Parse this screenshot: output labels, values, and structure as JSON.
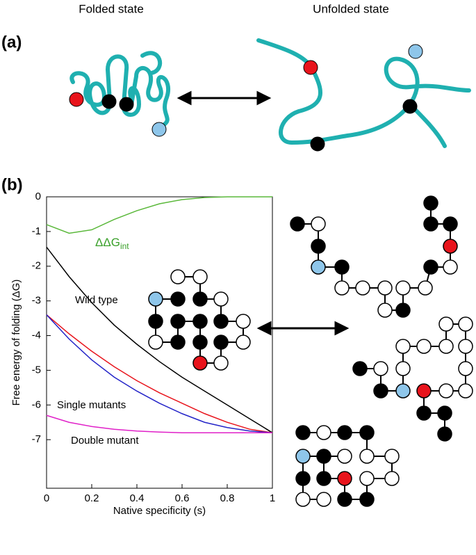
{
  "panel_a": {
    "label": "(a)",
    "left_title": "Folded state",
    "right_title": "Unfolded state"
  },
  "panel_b": {
    "label": "(b)"
  },
  "chart_data": {
    "type": "line",
    "xlabel": "Native specificity (s)",
    "ylabel": "Free energy of folding (ΔG)",
    "x": [
      0,
      0.1,
      0.2,
      0.3,
      0.4,
      0.5,
      0.6,
      0.7,
      0.8,
      0.9,
      1
    ],
    "xlim": [
      0,
      1
    ],
    "xticks": [
      0,
      0.2,
      0.4,
      0.6,
      0.8,
      1
    ],
    "ylim": [
      -8.4,
      0
    ],
    "yticks": [
      0,
      -1,
      -2,
      -3,
      -4,
      -5,
      -6,
      -7
    ],
    "series": [
      {
        "color": "#5ab83a",
        "values": [
          -0.8,
          -1.05,
          -0.95,
          -0.65,
          -0.4,
          -0.2,
          -0.08,
          -0.02,
          0,
          0,
          0
        ]
      },
      {
        "color": "#000000",
        "values": [
          -1.45,
          -2.3,
          -3.05,
          -3.7,
          -4.25,
          -4.75,
          -5.2,
          -5.6,
          -6.0,
          -6.4,
          -6.8
        ]
      },
      {
        "color": "#e8141c",
        "values": [
          -3.4,
          -3.95,
          -4.45,
          -4.9,
          -5.3,
          -5.65,
          -5.95,
          -6.25,
          -6.5,
          -6.7,
          -6.8
        ]
      },
      {
        "color": "#2424c8",
        "values": [
          -3.4,
          -4.1,
          -4.7,
          -5.2,
          -5.6,
          -5.95,
          -6.25,
          -6.5,
          -6.65,
          -6.75,
          -6.8
        ]
      },
      {
        "color": "#e020c8",
        "values": [
          -6.3,
          -6.5,
          -6.62,
          -6.7,
          -6.75,
          -6.78,
          -6.8,
          -6.8,
          -6.8,
          -6.8,
          -6.8
        ]
      }
    ],
    "annotations": [
      {
        "text": "ΔΔG",
        "sub": "int"
      },
      {
        "text": "Wild type"
      },
      {
        "text": "Single mutants"
      },
      {
        "text": "Double mutant"
      }
    ]
  }
}
